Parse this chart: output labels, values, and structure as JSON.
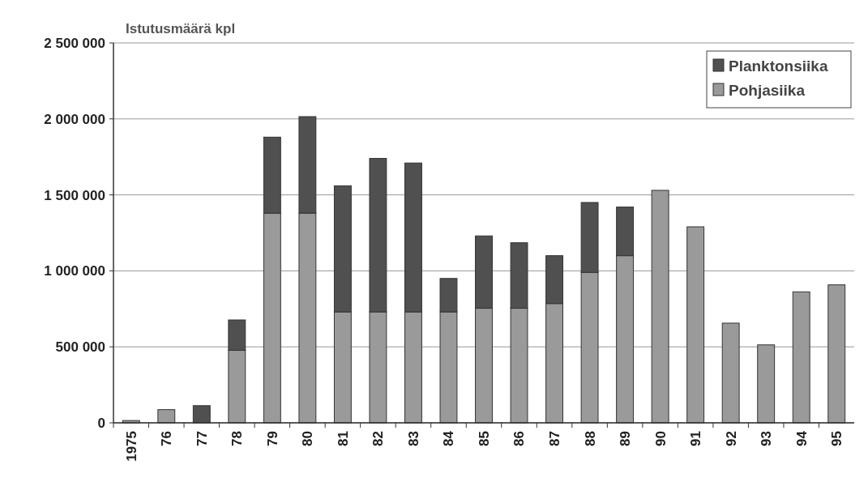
{
  "chart_data": {
    "type": "bar",
    "stacked": true,
    "ylabel": "Istutusmäärä kpl",
    "categories": [
      "1975",
      "76",
      "77",
      "78",
      "79",
      "80",
      "81",
      "82",
      "83",
      "84",
      "85",
      "86",
      "87",
      "88",
      "89",
      "90",
      "91",
      "92",
      "93",
      "94",
      "95"
    ],
    "series": [
      {
        "name": "Pohjasiika",
        "color": "#9a9a9a",
        "values": [
          15000,
          87000,
          0,
          477000,
          1380000,
          1380000,
          730000,
          730000,
          730000,
          730000,
          754000,
          754000,
          785000,
          990000,
          1100000,
          1530000,
          1290000,
          656000,
          513000,
          862000,
          908000
        ]
      },
      {
        "name": "Planktonsiika",
        "color": "#505050",
        "values": [
          0,
          0,
          113000,
          200000,
          500000,
          635000,
          830000,
          1010000,
          980000,
          220000,
          476000,
          431000,
          315000,
          460000,
          320000,
          0,
          0,
          0,
          0,
          0,
          0
        ]
      }
    ],
    "ylim": [
      0,
      2500000
    ],
    "yticks": [
      {
        "value": 0,
        "label": "0"
      },
      {
        "value": 500000,
        "label": "500 000"
      },
      {
        "value": 1000000,
        "label": "1 000 000"
      },
      {
        "value": 1500000,
        "label": "1 500 000"
      },
      {
        "value": 2000000,
        "label": "2 000 000"
      },
      {
        "value": 2500000,
        "label": "2 500 000"
      }
    ],
    "grid": "y",
    "legend": "top right"
  }
}
